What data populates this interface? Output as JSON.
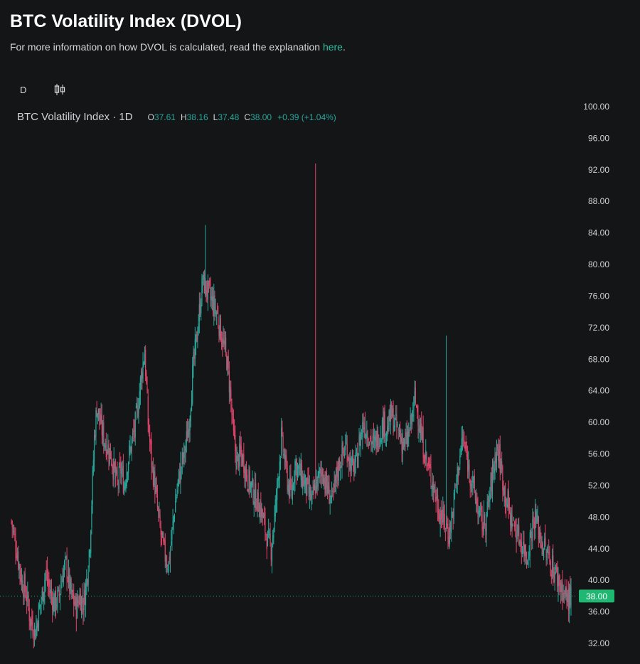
{
  "header": {
    "title": "BTC Volatility Index (DVOL)",
    "subtitle_text": "For more information on how DVOL is calculated, read the explanation",
    "subtitle_link": "here",
    "subtitle_end": "."
  },
  "toolbar": {
    "interval": "D",
    "chart_type_icon": "candlestick-icon"
  },
  "legend": {
    "name": "BTC Volatility Index · 1D",
    "open_label": "O",
    "open": "37.61",
    "high_label": "H",
    "high": "38.16",
    "low_label": "L",
    "low": "37.48",
    "close_label": "C",
    "close": "38.00",
    "change": "+0.39 (+1.04%)"
  },
  "colors": {
    "background": "#141517",
    "up": "#26a69a",
    "down": "#e0446a",
    "link": "#2fbfa0",
    "price_tag": "#1eb873"
  },
  "chart_data": {
    "type": "candlestick",
    "y_axis": {
      "min": 30,
      "max": 100,
      "ticks": [
        "100.00",
        "96.00",
        "92.00",
        "88.00",
        "84.00",
        "80.00",
        "76.00",
        "72.00",
        "68.00",
        "64.00",
        "60.00",
        "56.00",
        "52.00",
        "48.00",
        "44.00",
        "40.00",
        "36.00",
        "32.00"
      ]
    },
    "last_price": 38.0,
    "last_price_label": "38.00",
    "grid": false,
    "close_path": [
      [
        0,
        47.5
      ],
      [
        6,
        44
      ],
      [
        12,
        40
      ],
      [
        18,
        38
      ],
      [
        22,
        35
      ],
      [
        28,
        33.5
      ],
      [
        32,
        36
      ],
      [
        36,
        38
      ],
      [
        40,
        41
      ],
      [
        44,
        39
      ],
      [
        50,
        37
      ],
      [
        56,
        38
      ],
      [
        60,
        41
      ],
      [
        64,
        42
      ],
      [
        70,
        38
      ],
      [
        76,
        36.5
      ],
      [
        80,
        38
      ],
      [
        84,
        37
      ],
      [
        88,
        40
      ],
      [
        92,
        45
      ],
      [
        94,
        50
      ],
      [
        97,
        58
      ],
      [
        100,
        62
      ],
      [
        104,
        60
      ],
      [
        108,
        58
      ],
      [
        112,
        57
      ],
      [
        116,
        56
      ],
      [
        120,
        54
      ],
      [
        124,
        52
      ],
      [
        128,
        54
      ],
      [
        132,
        52
      ],
      [
        136,
        55
      ],
      [
        140,
        57
      ],
      [
        144,
        59
      ],
      [
        148,
        62
      ],
      [
        152,
        66
      ],
      [
        156,
        69
      ],
      [
        160,
        60
      ],
      [
        164,
        55
      ],
      [
        168,
        52
      ],
      [
        172,
        48
      ],
      [
        176,
        45
      ],
      [
        180,
        43
      ],
      [
        184,
        42
      ],
      [
        188,
        46
      ],
      [
        192,
        50
      ],
      [
        196,
        53
      ],
      [
        200,
        55
      ],
      [
        204,
        57
      ],
      [
        208,
        60
      ],
      [
        212,
        66
      ],
      [
        216,
        70
      ],
      [
        220,
        74
      ],
      [
        224,
        78
      ],
      [
        228,
        77
      ],
      [
        232,
        76
      ],
      [
        236,
        75
      ],
      [
        240,
        74
      ],
      [
        244,
        72
      ],
      [
        248,
        70
      ],
      [
        252,
        68
      ],
      [
        256,
        64
      ],
      [
        260,
        58
      ],
      [
        264,
        55
      ],
      [
        268,
        56
      ],
      [
        272,
        55
      ],
      [
        276,
        53
      ],
      [
        280,
        52
      ],
      [
        284,
        51
      ],
      [
        288,
        50
      ],
      [
        292,
        49
      ],
      [
        296,
        47
      ],
      [
        300,
        45
      ],
      [
        304,
        44
      ],
      [
        308,
        48
      ],
      [
        312,
        53
      ],
      [
        316,
        58
      ],
      [
        320,
        55
      ],
      [
        324,
        52
      ],
      [
        328,
        51
      ],
      [
        332,
        55
      ],
      [
        336,
        54
      ],
      [
        340,
        53
      ],
      [
        344,
        52
      ],
      [
        348,
        51
      ],
      [
        352,
        50
      ],
      [
        356,
        52
      ],
      [
        360,
        53
      ],
      [
        364,
        54
      ],
      [
        368,
        52
      ],
      [
        372,
        51
      ],
      [
        376,
        50
      ],
      [
        380,
        53
      ],
      [
        384,
        55
      ],
      [
        388,
        56
      ],
      [
        392,
        57
      ],
      [
        396,
        55
      ],
      [
        400,
        54
      ],
      [
        404,
        55
      ],
      [
        408,
        58
      ],
      [
        412,
        60
      ],
      [
        416,
        59
      ],
      [
        420,
        58
      ],
      [
        424,
        57
      ],
      [
        428,
        58
      ],
      [
        432,
        59
      ],
      [
        436,
        60
      ],
      [
        440,
        59
      ],
      [
        444,
        61
      ],
      [
        448,
        60
      ],
      [
        452,
        59
      ],
      [
        456,
        58
      ],
      [
        460,
        57
      ],
      [
        464,
        58
      ],
      [
        468,
        60
      ],
      [
        472,
        63
      ],
      [
        476,
        61
      ],
      [
        480,
        58
      ],
      [
        484,
        56
      ],
      [
        488,
        54
      ],
      [
        492,
        53
      ],
      [
        496,
        51
      ],
      [
        500,
        49
      ],
      [
        504,
        48
      ],
      [
        508,
        47
      ],
      [
        512,
        46
      ],
      [
        516,
        48
      ],
      [
        520,
        52
      ],
      [
        524,
        55
      ],
      [
        528,
        58
      ],
      [
        532,
        56
      ],
      [
        536,
        54
      ],
      [
        540,
        52
      ],
      [
        544,
        50
      ],
      [
        548,
        48
      ],
      [
        552,
        47
      ],
      [
        556,
        48
      ],
      [
        560,
        51
      ],
      [
        564,
        54
      ],
      [
        568,
        57
      ],
      [
        572,
        55
      ],
      [
        576,
        52
      ],
      [
        580,
        50
      ],
      [
        584,
        48
      ],
      [
        588,
        47
      ],
      [
        592,
        46
      ],
      [
        596,
        45
      ],
      [
        600,
        44
      ],
      [
        604,
        43
      ],
      [
        608,
        46
      ],
      [
        612,
        48
      ],
      [
        616,
        47
      ],
      [
        620,
        45
      ],
      [
        624,
        44
      ],
      [
        628,
        43
      ],
      [
        632,
        42
      ],
      [
        636,
        41
      ],
      [
        640,
        40
      ],
      [
        644,
        39
      ],
      [
        648,
        38
      ],
      [
        652,
        37.5
      ],
      [
        655,
        38
      ]
    ]
  }
}
